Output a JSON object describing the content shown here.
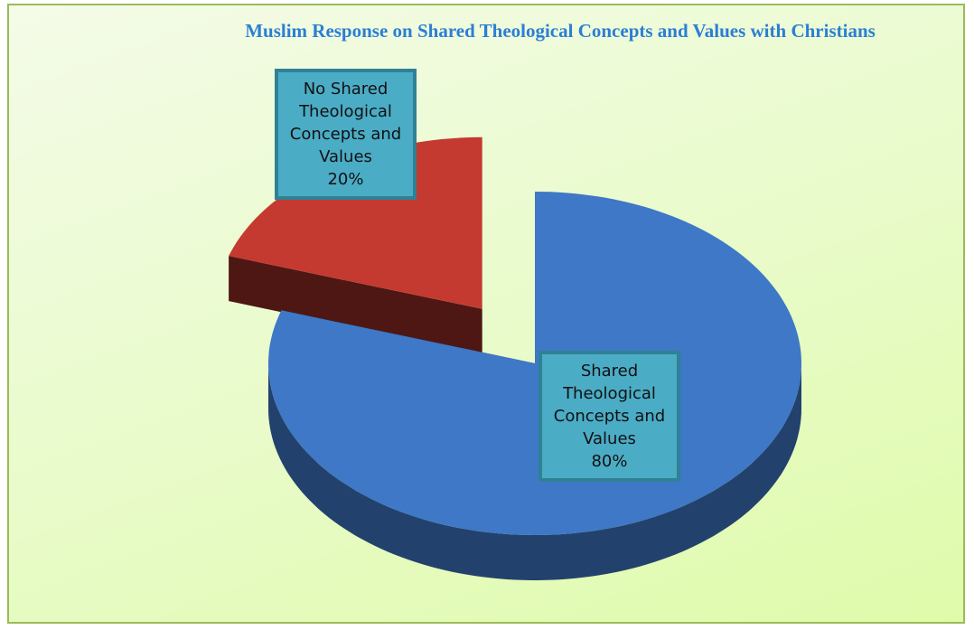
{
  "chart_data": {
    "type": "pie",
    "title": "Muslim Response on Shared Theological Concepts and Values with Christians",
    "categories": [
      "No Shared Theological Concepts and Values",
      "Shared Theological Concepts and Values"
    ],
    "values": [
      20,
      80
    ],
    "value_labels": [
      "20%",
      "80%"
    ],
    "colors": [
      "#c43a30",
      "#3e78c6"
    ]
  }
}
